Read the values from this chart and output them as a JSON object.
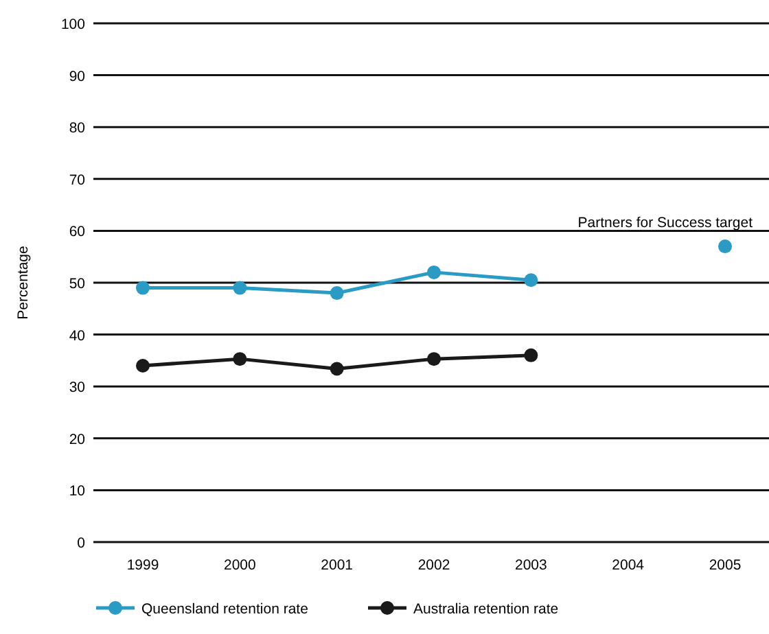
{
  "chart_data": {
    "type": "line",
    "ylabel": "Percentage",
    "categories": [
      "1999",
      "2000",
      "2001",
      "2002",
      "2003",
      "2004",
      "2005"
    ],
    "series": [
      {
        "name": "Queensland retention rate",
        "color": "#2a9bc4",
        "values": [
          49,
          49,
          48,
          52,
          50.5,
          null,
          null
        ]
      },
      {
        "name": "Australia retention rate",
        "color": "#1a1a1a",
        "values": [
          34,
          35.3,
          33.4,
          35.3,
          36,
          null,
          null
        ]
      },
      {
        "type": "scatter",
        "color": "#2a9bc4",
        "values": [
          null,
          null,
          null,
          null,
          null,
          null,
          57
        ]
      }
    ],
    "annotations": [
      {
        "text": "Partners for Success target",
        "x": "2005",
        "y": 57
      }
    ],
    "ylim": [
      0,
      100
    ],
    "yticks": [
      0,
      10,
      20,
      30,
      40,
      50,
      60,
      70,
      80,
      90,
      100
    ],
    "grid": "y",
    "legend": "bottom",
    "marker": "circle",
    "line_style": "solid"
  }
}
